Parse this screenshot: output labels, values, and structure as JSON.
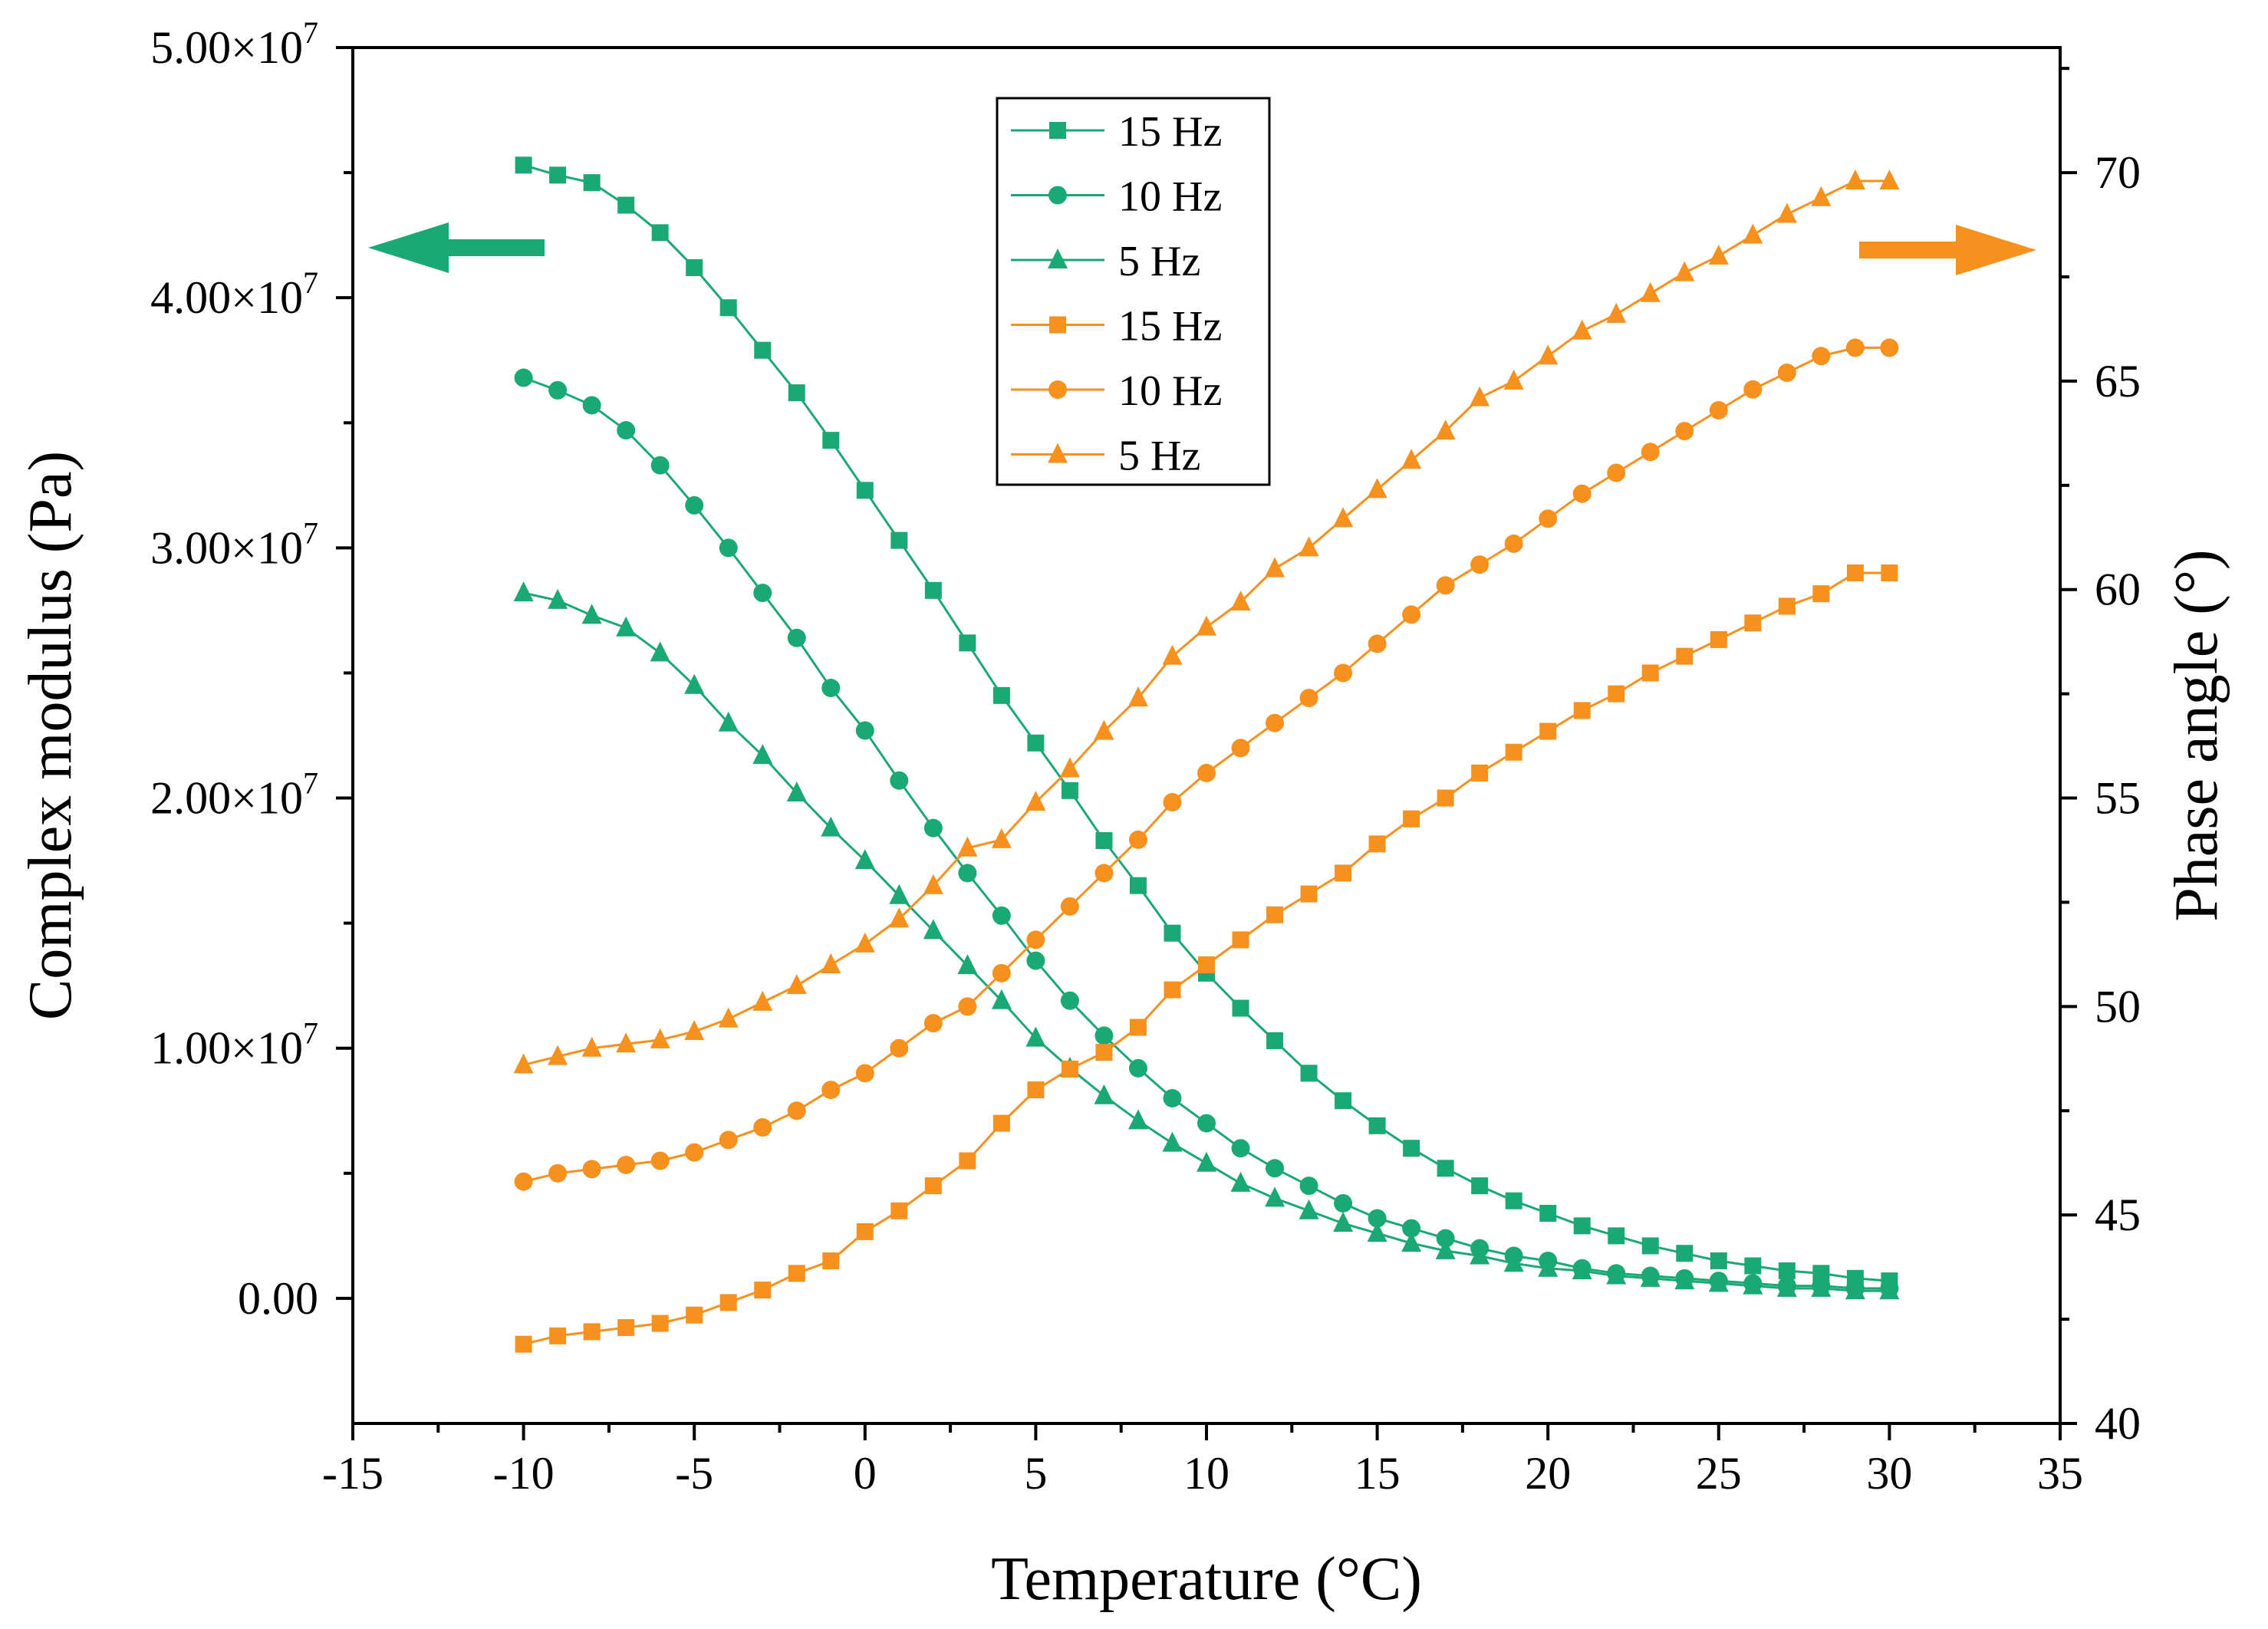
{
  "chart_data": {
    "type": "line",
    "title": "",
    "xlabel": "Temperature (°C)",
    "ylabel_left": "Complex modulus (Pa)",
    "ylabel_right": "Phase angle (°)",
    "xlim": [
      -15,
      35
    ],
    "ylim_left": [
      -5000000,
      50000000
    ],
    "ylim_right": [
      40,
      73
    ],
    "x_ticks": [
      {
        "v": -15,
        "label": "-15"
      },
      {
        "v": -10,
        "label": "-10"
      },
      {
        "v": -5,
        "label": "-5"
      },
      {
        "v": 0,
        "label": "0"
      },
      {
        "v": 5,
        "label": "5"
      },
      {
        "v": 10,
        "label": "10"
      },
      {
        "v": 15,
        "label": "15"
      },
      {
        "v": 20,
        "label": "20"
      },
      {
        "v": 25,
        "label": "25"
      },
      {
        "v": 30,
        "label": "30"
      },
      {
        "v": 35,
        "label": "35"
      }
    ],
    "y_left_ticks": [
      {
        "v": 0,
        "mant": "0.00",
        "exp": ""
      },
      {
        "v": 10000000,
        "mant": "1.00×10",
        "exp": "7"
      },
      {
        "v": 20000000,
        "mant": "2.00×10",
        "exp": "7"
      },
      {
        "v": 30000000,
        "mant": "3.00×10",
        "exp": "7"
      },
      {
        "v": 40000000,
        "mant": "4.00×10",
        "exp": "7"
      },
      {
        "v": 50000000,
        "mant": "5.00×10",
        "exp": "7"
      }
    ],
    "y_right_ticks": [
      {
        "v": 40,
        "label": "40"
      },
      {
        "v": 45,
        "label": "45"
      },
      {
        "v": 50,
        "label": "50"
      },
      {
        "v": 55,
        "label": "55"
      },
      {
        "v": 60,
        "label": "60"
      },
      {
        "v": 65,
        "label": "65"
      },
      {
        "v": 70,
        "label": "70"
      }
    ],
    "x": [
      -10,
      -9,
      -8,
      -7,
      -6,
      -5,
      -4,
      -3,
      -2,
      -1,
      0,
      1,
      2,
      3,
      4,
      5,
      6,
      7,
      8,
      9,
      10,
      11,
      12,
      13,
      14,
      15,
      16,
      17,
      18,
      19,
      20,
      21,
      22,
      23,
      24,
      25,
      26,
      27,
      28,
      29,
      30
    ],
    "colors": {
      "modulus": "#1aa874",
      "phase": "#f7911e"
    },
    "legend_position": "top-center",
    "series": [
      {
        "name": "15 Hz",
        "axis": "left",
        "marker": "square",
        "color": "#1aa874",
        "values": [
          45300000,
          44900000,
          44600000,
          43700000,
          42600000,
          41200000,
          39600000,
          37900000,
          36200000,
          34300000,
          32300000,
          30300000,
          28300000,
          26200000,
          24100000,
          22200000,
          20300000,
          18300000,
          16500000,
          14600000,
          13000000,
          11600000,
          10300000,
          9000000,
          7900000,
          6900000,
          6000000,
          5200000,
          4500000,
          3900000,
          3400000,
          2900000,
          2500000,
          2100000,
          1800000,
          1500000,
          1300000,
          1100000,
          1000000,
          800000,
          700000
        ]
      },
      {
        "name": "10 Hz",
        "axis": "left",
        "marker": "circle",
        "color": "#1aa874",
        "values": [
          36800000,
          36300000,
          35700000,
          34700000,
          33300000,
          31700000,
          30000000,
          28200000,
          26400000,
          24400000,
          22700000,
          20700000,
          18800000,
          17000000,
          15300000,
          13500000,
          11900000,
          10500000,
          9200000,
          8000000,
          7000000,
          6000000,
          5200000,
          4500000,
          3800000,
          3200000,
          2800000,
          2400000,
          2000000,
          1700000,
          1500000,
          1200000,
          1000000,
          900000,
          800000,
          700000,
          600000,
          500000,
          500000,
          400000,
          400000
        ]
      },
      {
        "name": "5 Hz",
        "axis": "left",
        "marker": "triangle",
        "color": "#1aa874",
        "values": [
          28200000,
          27900000,
          27300000,
          26800000,
          25800000,
          24500000,
          23000000,
          21700000,
          20200000,
          18800000,
          17500000,
          16100000,
          14700000,
          13300000,
          11900000,
          10400000,
          9200000,
          8100000,
          7100000,
          6200000,
          5400000,
          4600000,
          4000000,
          3500000,
          3000000,
          2600000,
          2200000,
          1900000,
          1700000,
          1400000,
          1200000,
          1100000,
          900000,
          800000,
          700000,
          600000,
          500000,
          400000,
          400000,
          300000,
          300000
        ]
      },
      {
        "name": "15 Hz",
        "axis": "right",
        "marker": "square",
        "color": "#f7911e",
        "values": [
          41.9,
          42.1,
          42.2,
          42.3,
          42.4,
          42.6,
          42.9,
          43.2,
          43.6,
          43.9,
          44.6,
          45.1,
          45.7,
          46.3,
          47.2,
          48.0,
          48.5,
          48.9,
          49.5,
          50.4,
          51.0,
          51.6,
          52.2,
          52.7,
          53.2,
          53.9,
          54.5,
          55.0,
          55.6,
          56.1,
          56.6,
          57.1,
          57.5,
          58.0,
          58.4,
          58.8,
          59.2,
          59.6,
          59.9,
          60.4,
          60.4
        ]
      },
      {
        "name": "10 Hz",
        "axis": "right",
        "marker": "circle",
        "color": "#f7911e",
        "values": [
          45.8,
          46.0,
          46.1,
          46.2,
          46.3,
          46.5,
          46.8,
          47.1,
          47.5,
          48.0,
          48.4,
          49.0,
          49.6,
          50.0,
          50.8,
          51.6,
          52.4,
          53.2,
          54.0,
          54.9,
          55.6,
          56.2,
          56.8,
          57.4,
          58.0,
          58.7,
          59.4,
          60.1,
          60.6,
          61.1,
          61.7,
          62.3,
          62.8,
          63.3,
          63.8,
          64.3,
          64.8,
          65.2,
          65.6,
          65.8,
          65.8
        ]
      },
      {
        "name": "5 Hz",
        "axis": "right",
        "marker": "triangle",
        "color": "#f7911e",
        "values": [
          48.6,
          48.8,
          49.0,
          49.1,
          49.2,
          49.4,
          49.7,
          50.1,
          50.5,
          51.0,
          51.5,
          52.1,
          52.9,
          53.8,
          54.0,
          54.9,
          55.7,
          56.6,
          57.4,
          58.4,
          59.1,
          59.7,
          60.5,
          61.0,
          61.7,
          62.4,
          63.1,
          63.8,
          64.6,
          65.0,
          65.6,
          66.2,
          66.6,
          67.1,
          67.6,
          68.0,
          68.5,
          69.0,
          69.4,
          69.8,
          69.8
        ]
      }
    ]
  }
}
